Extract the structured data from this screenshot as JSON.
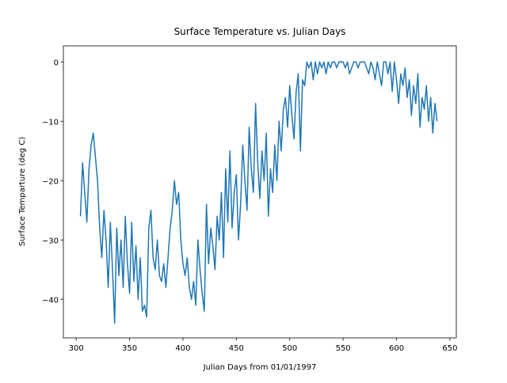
{
  "chart_data": {
    "type": "line",
    "title": "Surface Temperature vs. Julian Days",
    "x_label": "Julian Days from 01/01/1997",
    "y_label": "Surface Temparture (deg C)",
    "xlim": [
      288,
      656
    ],
    "ylim": [
      -46.5,
      2.7
    ],
    "xticks": [
      300,
      350,
      400,
      450,
      500,
      550,
      600,
      650
    ],
    "yticks": [
      {
        "value": -40,
        "label": "−40"
      },
      {
        "value": -30,
        "label": "−30"
      },
      {
        "value": -20,
        "label": "−20"
      },
      {
        "value": -10,
        "label": "−10"
      },
      0
    ],
    "series": [
      {
        "color": "#1f77b4",
        "x": [
          304,
          306,
          308,
          310,
          312,
          314,
          316,
          318,
          320,
          322,
          324,
          326,
          328,
          330,
          332,
          334,
          336,
          338,
          340,
          342,
          344,
          346,
          348,
          350,
          352,
          354,
          356,
          358,
          360,
          362,
          364,
          366,
          368,
          370,
          372,
          374,
          376,
          378,
          380,
          382,
          384,
          386,
          388,
          390,
          392,
          394,
          396,
          398,
          400,
          402,
          404,
          406,
          408,
          410,
          412,
          414,
          416,
          418,
          420,
          422,
          424,
          426,
          428,
          430,
          432,
          434,
          436,
          438,
          440,
          442,
          444,
          446,
          448,
          450,
          452,
          454,
          456,
          458,
          460,
          462,
          464,
          466,
          468,
          470,
          472,
          474,
          476,
          478,
          480,
          482,
          484,
          486,
          488,
          490,
          492,
          494,
          496,
          498,
          500,
          502,
          504,
          506,
          508,
          510,
          512,
          514,
          516,
          518,
          520,
          522,
          524,
          526,
          528,
          530,
          532,
          534,
          536,
          538,
          540,
          542,
          544,
          546,
          548,
          550,
          552,
          554,
          556,
          558,
          560,
          562,
          564,
          566,
          568,
          570,
          572,
          574,
          576,
          578,
          580,
          582,
          584,
          586,
          588,
          590,
          592,
          594,
          596,
          598,
          600,
          602,
          604,
          606,
          608,
          610,
          612,
          614,
          616,
          618,
          620,
          622,
          624,
          626,
          628,
          630,
          632,
          634,
          636,
          638
        ],
        "values": [
          -26,
          -17,
          -22,
          -27,
          -18,
          -14,
          -12,
          -16,
          -20,
          -28,
          -33,
          -25,
          -30,
          -38,
          -27,
          -35,
          -44,
          -28,
          -36,
          -30,
          -38,
          -26,
          -34,
          -39,
          -27,
          -37,
          -31,
          -40,
          -33,
          -42,
          -41,
          -43,
          -28,
          -25,
          -33,
          -35,
          -30,
          -36,
          -37,
          -34,
          -38,
          -33,
          -28,
          -25,
          -20,
          -24,
          -22,
          -30,
          -34,
          -36,
          -33,
          -38,
          -40,
          -37,
          -41,
          -30,
          -35,
          -39,
          -42,
          -24,
          -34,
          -28,
          -31,
          -35,
          -26,
          -30,
          -22,
          -33,
          -18,
          -27,
          -15,
          -28,
          -22,
          -19,
          -30,
          -24,
          -14,
          -20,
          -25,
          -11,
          -18,
          -22,
          -7,
          -17,
          -23,
          -15,
          -20,
          -12,
          -26,
          -18,
          -22,
          -14,
          -20,
          -10,
          -15,
          -8,
          -6,
          -11,
          -4,
          -9,
          -13,
          -5,
          -2,
          -15,
          -3,
          -4,
          0,
          -1,
          0,
          -3,
          0,
          -2,
          0,
          -1,
          0,
          -2,
          0,
          -1,
          0,
          0,
          -1,
          0,
          0,
          0,
          -1,
          0,
          -2,
          -1,
          0,
          0,
          -1,
          0,
          0,
          0,
          -1,
          -2,
          0,
          -1,
          -3,
          0,
          -2,
          -4,
          0,
          0,
          -2,
          0,
          -5,
          0,
          -3,
          -7,
          -2,
          -4,
          -1,
          -6,
          -3,
          -9,
          -4,
          -7,
          -2,
          -11,
          -6,
          -8,
          -4,
          -10,
          -6,
          -12,
          -7,
          -10
        ]
      }
    ]
  }
}
